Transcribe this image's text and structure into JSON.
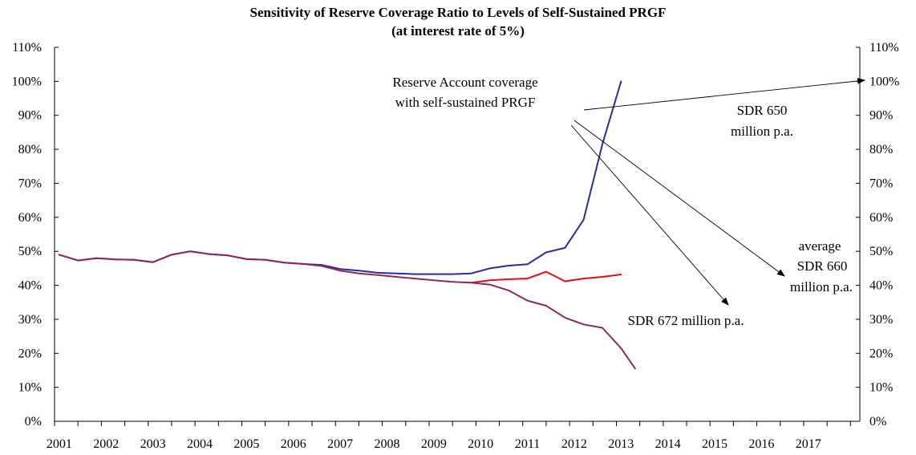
{
  "chart_data": {
    "type": "line",
    "title": "Sensitivity of Reserve Coverage Ratio to Levels of Self-Sustained PRGF",
    "subtitle": "(at interest rate of 5%)",
    "xlabel": "",
    "ylabel": "",
    "x_tick_labels": [
      "2001",
      "2002",
      "2003",
      "2004",
      "2005",
      "2006",
      "2007",
      "2008",
      "2009",
      "2010",
      "2011",
      "2012",
      "2013",
      "2014",
      "2015",
      "2016",
      "2017"
    ],
    "y_tick_labels": [
      "0%",
      "10%",
      "20%",
      "30%",
      "40%",
      "50%",
      "60%",
      "70%",
      "80%",
      "90%",
      "100%",
      "110%"
    ],
    "ylim": [
      0,
      110
    ],
    "xlim": [
      2000.9,
      2018.1
    ],
    "grid": false,
    "legend": "none",
    "series": [
      {
        "color": "#2b2b9c",
        "points": [
          [
            2001.0,
            49.0
          ],
          [
            2001.4,
            47.3
          ],
          [
            2001.8,
            48.0
          ],
          [
            2002.2,
            47.6
          ],
          [
            2002.6,
            47.5
          ],
          [
            2003.0,
            46.8
          ],
          [
            2003.4,
            49.0
          ],
          [
            2003.8,
            50.0
          ],
          [
            2004.2,
            49.2
          ],
          [
            2004.6,
            48.8
          ],
          [
            2005.0,
            47.7
          ],
          [
            2005.4,
            47.5
          ],
          [
            2005.8,
            46.7
          ],
          [
            2006.2,
            46.3
          ],
          [
            2006.6,
            46.0
          ],
          [
            2007.0,
            44.8
          ],
          [
            2007.4,
            44.3
          ],
          [
            2007.8,
            43.7
          ],
          [
            2008.2,
            43.5
          ],
          [
            2008.6,
            43.3
          ],
          [
            2009.0,
            43.3
          ],
          [
            2009.4,
            43.3
          ],
          [
            2009.8,
            43.5
          ],
          [
            2010.2,
            45.0
          ],
          [
            2010.6,
            45.8
          ],
          [
            2011.0,
            46.2
          ],
          [
            2011.4,
            49.7
          ],
          [
            2011.8,
            51.0
          ],
          [
            2012.2,
            59.3
          ],
          [
            2012.6,
            81.5
          ],
          [
            2013.0,
            100.0
          ]
        ]
      },
      {
        "color": "#e01010",
        "points": [
          [
            2009.8,
            40.8
          ],
          [
            2010.2,
            41.5
          ],
          [
            2010.6,
            41.8
          ],
          [
            2011.0,
            42.0
          ],
          [
            2011.4,
            44.0
          ],
          [
            2011.8,
            41.2
          ],
          [
            2012.2,
            42.0
          ],
          [
            2012.6,
            42.5
          ],
          [
            2013.0,
            43.2
          ]
        ]
      },
      {
        "color": "#8b2a5a",
        "points": [
          [
            2001.0,
            49.0
          ],
          [
            2001.4,
            47.3
          ],
          [
            2001.8,
            48.0
          ],
          [
            2002.2,
            47.6
          ],
          [
            2002.6,
            47.5
          ],
          [
            2003.0,
            46.8
          ],
          [
            2003.4,
            49.0
          ],
          [
            2003.8,
            50.0
          ],
          [
            2004.2,
            49.2
          ],
          [
            2004.6,
            48.8
          ],
          [
            2005.0,
            47.7
          ],
          [
            2005.4,
            47.5
          ],
          [
            2005.8,
            46.7
          ],
          [
            2006.2,
            46.3
          ],
          [
            2006.6,
            45.7
          ],
          [
            2007.0,
            44.3
          ],
          [
            2007.4,
            43.5
          ],
          [
            2007.8,
            43.0
          ],
          [
            2008.2,
            42.5
          ],
          [
            2008.6,
            42.0
          ],
          [
            2009.0,
            41.5
          ],
          [
            2009.4,
            41.0
          ],
          [
            2009.8,
            40.8
          ],
          [
            2010.2,
            40.2
          ],
          [
            2010.6,
            38.5
          ],
          [
            2011.0,
            35.5
          ],
          [
            2011.4,
            34.0
          ],
          [
            2011.8,
            30.5
          ],
          [
            2012.2,
            28.5
          ],
          [
            2012.6,
            27.5
          ],
          [
            2013.0,
            21.5
          ],
          [
            2013.3,
            15.5
          ]
        ]
      }
    ],
    "annotations": {
      "reserve_line1": "Reserve Account coverage",
      "reserve_line2": "with self-sustained PRGF",
      "sdr650_line1": "SDR 650",
      "sdr650_line2": "million p.a.",
      "avg_line1": "average",
      "avg_line2": "SDR 660",
      "avg_line3": "million p.a.",
      "sdr672": "SDR 672 million p.a."
    }
  }
}
